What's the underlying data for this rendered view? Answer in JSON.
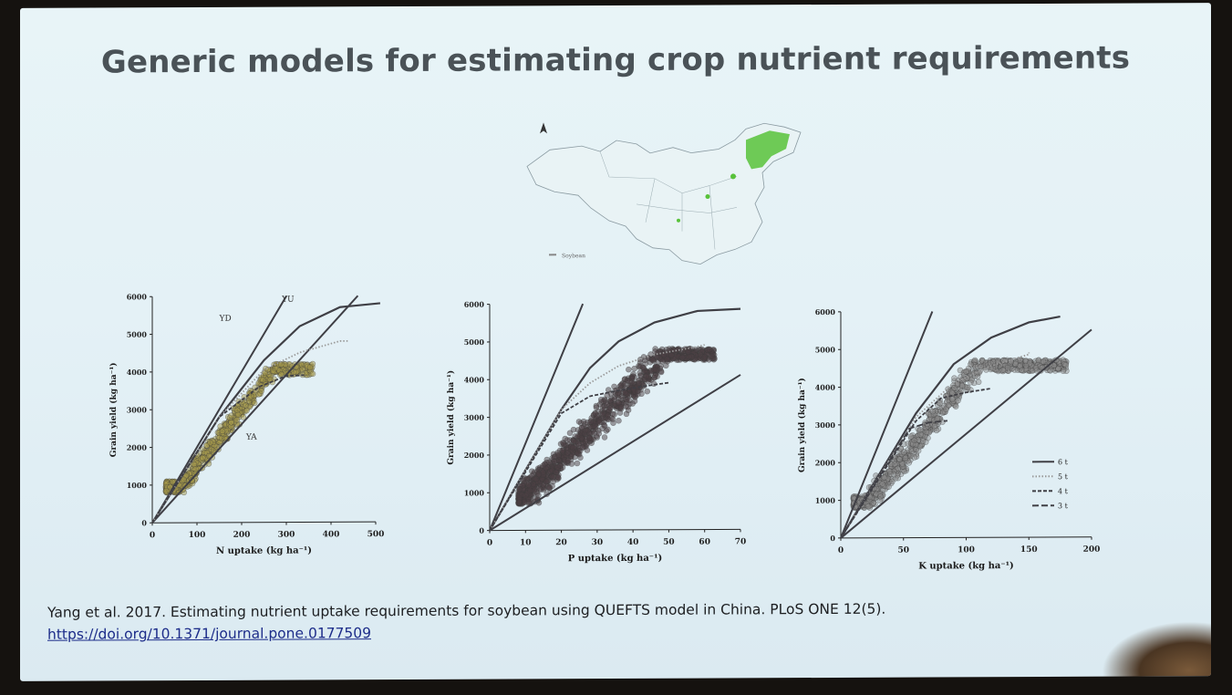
{
  "slide": {
    "title": "Generic models for estimating crop nutrient requirements",
    "citation": "Yang et al. 2017. Estimating nutrient uptake requirements for soybean using QUEFTS model in China. PLoS ONE 12(5).",
    "doi": "https://doi.org/10.1371/journal.pone.0177509"
  },
  "colors": {
    "slide_bg": "#e4f1f6",
    "title": "#4a5257",
    "n_scatter": "#a59a4c",
    "p_scatter": "#4c3f44",
    "k_scatter": "#8c8c8c",
    "curve": "#3f3f45",
    "map_highlight": "#58c23a"
  },
  "map": {
    "north_arrow_icon": "north-arrow-icon",
    "legend_text": "Soybean"
  },
  "chart_data": [
    {
      "type": "scatter",
      "xlabel": "N uptake (kg ha⁻¹)",
      "ylabel": "Grain yield (kg ha⁻¹)",
      "xlim": [
        0,
        500
      ],
      "ylim": [
        0,
        6000
      ],
      "xticks": [
        "0",
        "100",
        "200",
        "300",
        "400",
        "500"
      ],
      "yticks": [
        "0",
        "1000",
        "2000",
        "3000",
        "4000",
        "5000",
        "6000"
      ],
      "annotations": [
        "YD",
        "YU",
        "YA"
      ],
      "lines": [
        {
          "name": "YD",
          "x": [
            0,
            300
          ],
          "y": [
            0,
            6000
          ]
        },
        {
          "name": "YU",
          "x": [
            0,
            460
          ],
          "y": [
            0,
            6000
          ]
        }
      ],
      "curves": [
        {
          "style": "solid",
          "x": [
            0,
            150,
            250,
            330,
            420,
            510
          ],
          "y": [
            0,
            2800,
            4300,
            5200,
            5700,
            5800
          ]
        },
        {
          "style": "dotted",
          "x": [
            0,
            150,
            250,
            330,
            420,
            440
          ],
          "y": [
            0,
            2800,
            4050,
            4500,
            4800,
            4800
          ]
        },
        {
          "style": "dashed",
          "x": [
            0,
            150,
            240,
            300,
            340
          ],
          "y": [
            0,
            2800,
            3600,
            3880,
            3900
          ]
        }
      ],
      "scatter_cloud": {
        "x_range": [
          30,
          360
        ],
        "y_range": [
          800,
          4200
        ],
        "n": 650,
        "ratio": 15,
        "spread": 400
      }
    },
    {
      "type": "scatter",
      "xlabel": "P uptake (kg ha⁻¹)",
      "ylabel": "Grain yield (kg ha⁻¹)",
      "xlim": [
        0,
        70
      ],
      "ylim": [
        0,
        6000
      ],
      "xticks": [
        "0",
        "10",
        "20",
        "30",
        "40",
        "50",
        "60",
        "70"
      ],
      "yticks": [
        "0",
        "1000",
        "2000",
        "3000",
        "4000",
        "5000",
        "6000"
      ],
      "lines": [
        {
          "x": [
            0,
            26
          ],
          "y": [
            0,
            6000
          ]
        },
        {
          "x": [
            0,
            70
          ],
          "y": [
            0,
            4100
          ]
        }
      ],
      "curves": [
        {
          "style": "solid",
          "x": [
            0,
            20,
            28,
            36,
            46,
            58,
            70
          ],
          "y": [
            0,
            3200,
            4300,
            5000,
            5500,
            5800,
            5850
          ]
        },
        {
          "style": "dotted",
          "x": [
            0,
            20,
            28,
            36,
            46,
            58,
            60
          ],
          "y": [
            0,
            3200,
            3900,
            4350,
            4650,
            4850,
            4900
          ]
        },
        {
          "style": "dashed",
          "x": [
            0,
            20,
            28,
            36,
            44,
            50
          ],
          "y": [
            0,
            3100,
            3550,
            3700,
            3820,
            3900
          ]
        }
      ],
      "scatter_cloud": {
        "x_range": [
          8,
          63
        ],
        "y_range": [
          700,
          4800
        ],
        "n": 1100,
        "ratio": 95,
        "spread": 650
      }
    },
    {
      "type": "scatter",
      "xlabel": "K uptake (kg ha⁻¹)",
      "ylabel": "Grain yield (kg ha⁻¹)",
      "xlim": [
        0,
        200
      ],
      "ylim": [
        0,
        6000
      ],
      "xticks": [
        "0",
        "50",
        "100",
        "150",
        "200"
      ],
      "yticks": [
        "0",
        "1000",
        "2000",
        "3000",
        "4000",
        "5000",
        "6000"
      ],
      "legend": {
        "position": "right",
        "entries": [
          {
            "label": "6 t",
            "style": "solid"
          },
          {
            "label": "5 t",
            "style": "dotted"
          },
          {
            "label": "4 t",
            "style": "dashed"
          },
          {
            "label": "3 t",
            "style": "longdash"
          }
        ]
      },
      "lines": [
        {
          "x": [
            0,
            73
          ],
          "y": [
            0,
            6000
          ]
        },
        {
          "x": [
            0,
            200
          ],
          "y": [
            0,
            5500
          ]
        }
      ],
      "curves": [
        {
          "style": "solid",
          "x": [
            0,
            60,
            90,
            120,
            150,
            175
          ],
          "y": [
            0,
            3300,
            4600,
            5300,
            5700,
            5850
          ]
        },
        {
          "style": "dotted",
          "x": [
            0,
            60,
            90,
            120,
            150,
            150
          ],
          "y": [
            0,
            3200,
            4100,
            4550,
            4850,
            4900
          ]
        },
        {
          "style": "dashed",
          "x": [
            0,
            60,
            80,
            100,
            120
          ],
          "y": [
            0,
            3100,
            3700,
            3850,
            3950
          ]
        },
        {
          "style": "longdash",
          "x": [
            0,
            55,
            70,
            85
          ],
          "y": [
            0,
            2900,
            3050,
            3100
          ]
        }
      ],
      "scatter_cloud": {
        "x_range": [
          10,
          180
        ],
        "y_range": [
          800,
          4700
        ],
        "n": 900,
        "ratio": 42,
        "spread": 550
      }
    }
  ]
}
